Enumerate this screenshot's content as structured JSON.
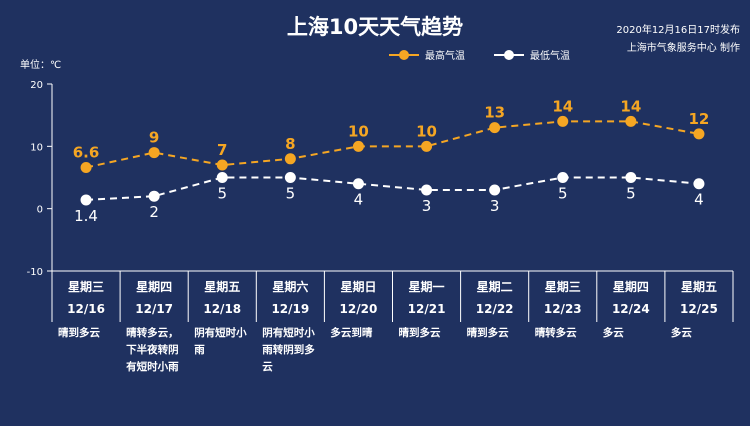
{
  "title": "上海10天天气趋势",
  "published": "2020年12月16日17时发布",
  "producer": "上海市气象服务中心 制作",
  "unit_label": "单位：℃",
  "colors": {
    "background": "#1f3160",
    "high": "#f5a623",
    "low": "#ffffff"
  },
  "chart_data": {
    "type": "line",
    "title": "上海10天天气趋势",
    "ylabel": "单位：℃",
    "ylim": [
      -10,
      20
    ],
    "yticks": [
      20,
      10,
      0,
      -10
    ],
    "grid": false,
    "legend_position": "top-right",
    "categories": [
      {
        "weekday": "星期三",
        "date": "12/16",
        "weather": [
          "晴到多云"
        ]
      },
      {
        "weekday": "星期四",
        "date": "12/17",
        "weather": [
          "晴转多云，",
          "下半夜转阴",
          "有短时小雨"
        ]
      },
      {
        "weekday": "星期五",
        "date": "12/18",
        "weather": [
          "阴有短时小",
          "雨"
        ]
      },
      {
        "weekday": "星期六",
        "date": "12/19",
        "weather": [
          "阴有短时小",
          "雨转阴到多",
          "云"
        ]
      },
      {
        "weekday": "星期日",
        "date": "12/20",
        "weather": [
          "多云到晴"
        ]
      },
      {
        "weekday": "星期一",
        "date": "12/21",
        "weather": [
          "晴到多云"
        ]
      },
      {
        "weekday": "星期二",
        "date": "12/22",
        "weather": [
          "晴到多云"
        ]
      },
      {
        "weekday": "星期三",
        "date": "12/23",
        "weather": [
          "晴转多云"
        ]
      },
      {
        "weekday": "星期四",
        "date": "12/24",
        "weather": [
          "多云"
        ]
      },
      {
        "weekday": "星期五",
        "date": "12/25",
        "weather": [
          "多云"
        ]
      }
    ],
    "series": [
      {
        "name": "最高气温",
        "key": "high",
        "values": [
          6.6,
          9,
          7,
          8,
          10,
          10,
          13,
          14,
          14,
          12
        ]
      },
      {
        "name": "最低气温",
        "key": "low",
        "values": [
          1.4,
          2,
          5,
          5,
          4,
          3,
          3,
          5,
          5,
          4
        ]
      }
    ]
  }
}
